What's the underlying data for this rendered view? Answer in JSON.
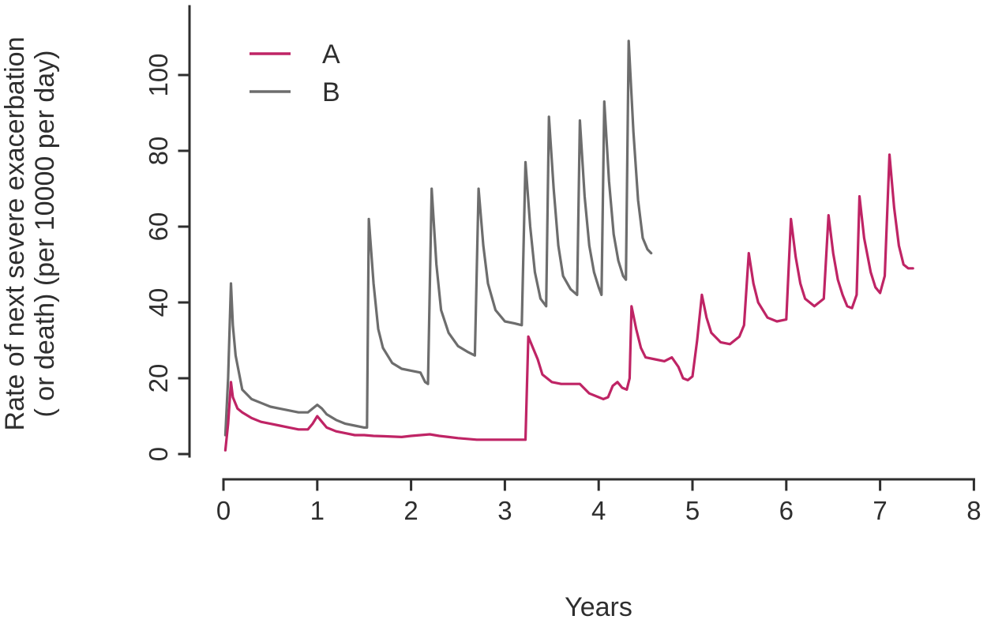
{
  "chart_data": {
    "type": "line",
    "title": "",
    "xlabel": "Years",
    "ylabel": "Rate of next severe exacerbation ( or death) (per 10000 per day)",
    "ylabel_lines": [
      "Rate of next severe exacerbation",
      "( or death) (per 10000 per day)"
    ],
    "xlim": [
      0,
      8
    ],
    "ylim": [
      0,
      118
    ],
    "xticks": [
      0,
      1,
      2,
      3,
      4,
      5,
      6,
      7,
      8
    ],
    "yticks": [
      0,
      20,
      40,
      60,
      80,
      100
    ],
    "grid": false,
    "legend_position": "top-left",
    "series": [
      {
        "name": "A",
        "color": "#bf2465",
        "points": [
          [
            0.02,
            1
          ],
          [
            0.05,
            8
          ],
          [
            0.08,
            19
          ],
          [
            0.1,
            15
          ],
          [
            0.15,
            12
          ],
          [
            0.2,
            11
          ],
          [
            0.3,
            9.5
          ],
          [
            0.4,
            8.5
          ],
          [
            0.5,
            8
          ],
          [
            0.6,
            7.5
          ],
          [
            0.7,
            7
          ],
          [
            0.8,
            6.5
          ],
          [
            0.9,
            6.5
          ],
          [
            0.95,
            8
          ],
          [
            1,
            10
          ],
          [
            1.05,
            8.5
          ],
          [
            1.1,
            7
          ],
          [
            1.2,
            6
          ],
          [
            1.3,
            5.5
          ],
          [
            1.4,
            5
          ],
          [
            1.5,
            5
          ],
          [
            1.6,
            4.8
          ],
          [
            1.7,
            4.7
          ],
          [
            1.8,
            4.6
          ],
          [
            1.9,
            4.5
          ],
          [
            2,
            4.8
          ],
          [
            2.1,
            5
          ],
          [
            2.2,
            5.2
          ],
          [
            2.3,
            4.8
          ],
          [
            2.4,
            4.5
          ],
          [
            2.5,
            4.2
          ],
          [
            2.6,
            4
          ],
          [
            2.7,
            3.8
          ],
          [
            2.9,
            3.8
          ],
          [
            3.1,
            3.8
          ],
          [
            3.22,
            3.8
          ],
          [
            3.25,
            31
          ],
          [
            3.3,
            28
          ],
          [
            3.35,
            25
          ],
          [
            3.4,
            21
          ],
          [
            3.5,
            19
          ],
          [
            3.6,
            18.5
          ],
          [
            3.7,
            18.5
          ],
          [
            3.8,
            18.5
          ],
          [
            3.9,
            16
          ],
          [
            4,
            15
          ],
          [
            4.05,
            14.5
          ],
          [
            4.1,
            15
          ],
          [
            4.15,
            18
          ],
          [
            4.2,
            19
          ],
          [
            4.25,
            17.5
          ],
          [
            4.3,
            17
          ],
          [
            4.33,
            20
          ],
          [
            4.35,
            39
          ],
          [
            4.4,
            33
          ],
          [
            4.45,
            28
          ],
          [
            4.5,
            25.5
          ],
          [
            4.6,
            25
          ],
          [
            4.7,
            24.5
          ],
          [
            4.78,
            25.5
          ],
          [
            4.85,
            23
          ],
          [
            4.9,
            20
          ],
          [
            4.95,
            19.5
          ],
          [
            5,
            20.5
          ],
          [
            5.05,
            30
          ],
          [
            5.1,
            42
          ],
          [
            5.15,
            36
          ],
          [
            5.2,
            32
          ],
          [
            5.3,
            29.5
          ],
          [
            5.4,
            29
          ],
          [
            5.5,
            31
          ],
          [
            5.55,
            34
          ],
          [
            5.6,
            53
          ],
          [
            5.65,
            45
          ],
          [
            5.7,
            40
          ],
          [
            5.8,
            36
          ],
          [
            5.9,
            35
          ],
          [
            6,
            35.5
          ],
          [
            6.05,
            62
          ],
          [
            6.1,
            52
          ],
          [
            6.15,
            45
          ],
          [
            6.2,
            41
          ],
          [
            6.3,
            39
          ],
          [
            6.4,
            41
          ],
          [
            6.45,
            63
          ],
          [
            6.5,
            53
          ],
          [
            6.55,
            46
          ],
          [
            6.6,
            42
          ],
          [
            6.65,
            39
          ],
          [
            6.7,
            38.5
          ],
          [
            6.75,
            42
          ],
          [
            6.78,
            68
          ],
          [
            6.83,
            57
          ],
          [
            6.9,
            48
          ],
          [
            6.95,
            44
          ],
          [
            7,
            42.5
          ],
          [
            7.05,
            47
          ],
          [
            7.1,
            79
          ],
          [
            7.15,
            65
          ],
          [
            7.2,
            55
          ],
          [
            7.25,
            50
          ],
          [
            7.3,
            49
          ],
          [
            7.35,
            49
          ]
        ]
      },
      {
        "name": "B",
        "color": "#6d6d6d",
        "points": [
          [
            0.02,
            5
          ],
          [
            0.05,
            20
          ],
          [
            0.08,
            45
          ],
          [
            0.1,
            34
          ],
          [
            0.13,
            26
          ],
          [
            0.2,
            17
          ],
          [
            0.3,
            14.5
          ],
          [
            0.4,
            13.5
          ],
          [
            0.5,
            12.5
          ],
          [
            0.6,
            12
          ],
          [
            0.7,
            11.5
          ],
          [
            0.8,
            11
          ],
          [
            0.9,
            11
          ],
          [
            0.95,
            12
          ],
          [
            1,
            13
          ],
          [
            1.05,
            12
          ],
          [
            1.1,
            10.5
          ],
          [
            1.2,
            9
          ],
          [
            1.3,
            8
          ],
          [
            1.4,
            7.5
          ],
          [
            1.5,
            7
          ],
          [
            1.53,
            7
          ],
          [
            1.55,
            62
          ],
          [
            1.6,
            45
          ],
          [
            1.65,
            33
          ],
          [
            1.7,
            28
          ],
          [
            1.8,
            24
          ],
          [
            1.9,
            22.5
          ],
          [
            2,
            22
          ],
          [
            2.1,
            21.5
          ],
          [
            2.15,
            19
          ],
          [
            2.18,
            18.5
          ],
          [
            2.22,
            70
          ],
          [
            2.27,
            50
          ],
          [
            2.32,
            38
          ],
          [
            2.4,
            32
          ],
          [
            2.5,
            28.5
          ],
          [
            2.6,
            27
          ],
          [
            2.68,
            26
          ],
          [
            2.72,
            70
          ],
          [
            2.77,
            55
          ],
          [
            2.82,
            45
          ],
          [
            2.9,
            38
          ],
          [
            3,
            35
          ],
          [
            3.1,
            34.5
          ],
          [
            3.18,
            34
          ],
          [
            3.22,
            77
          ],
          [
            3.27,
            60
          ],
          [
            3.32,
            48
          ],
          [
            3.38,
            41
          ],
          [
            3.44,
            39
          ],
          [
            3.47,
            89
          ],
          [
            3.52,
            70
          ],
          [
            3.57,
            55
          ],
          [
            3.62,
            47
          ],
          [
            3.7,
            43.5
          ],
          [
            3.77,
            42
          ],
          [
            3.8,
            88
          ],
          [
            3.85,
            68
          ],
          [
            3.9,
            55
          ],
          [
            3.95,
            48
          ],
          [
            4,
            44
          ],
          [
            4.03,
            42
          ],
          [
            4.06,
            93
          ],
          [
            4.11,
            72
          ],
          [
            4.16,
            58
          ],
          [
            4.21,
            51
          ],
          [
            4.26,
            47
          ],
          [
            4.29,
            46
          ],
          [
            4.32,
            109
          ],
          [
            4.37,
            85
          ],
          [
            4.42,
            67
          ],
          [
            4.47,
            57
          ],
          [
            4.52,
            54
          ],
          [
            4.56,
            53
          ]
        ]
      }
    ]
  }
}
